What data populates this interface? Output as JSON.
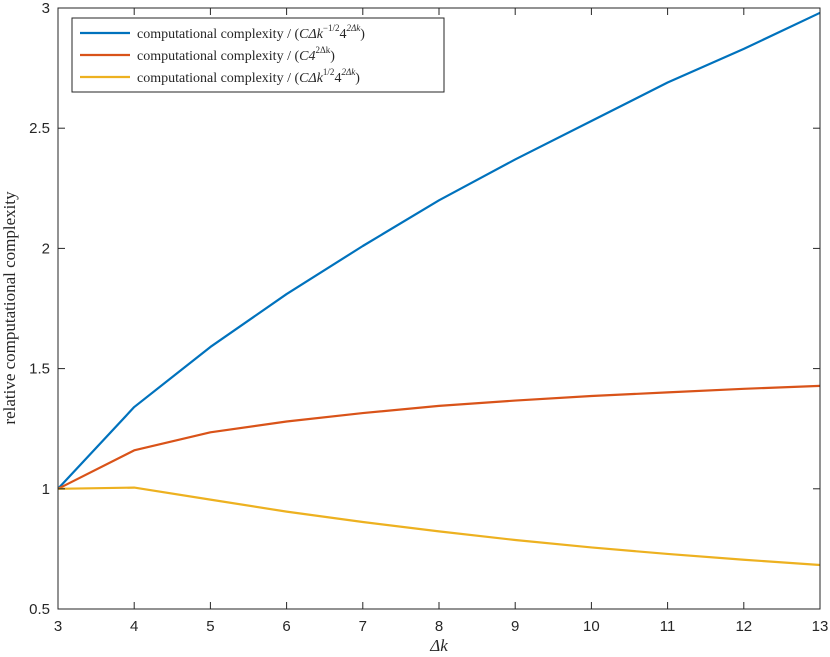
{
  "chart_data": {
    "type": "line",
    "xlabel": "Δk",
    "ylabel": "relative computational complexity",
    "xlim": [
      3,
      13
    ],
    "ylim": [
      0.5,
      3
    ],
    "x_ticks": [
      3,
      4,
      5,
      6,
      7,
      8,
      9,
      10,
      11,
      12,
      13
    ],
    "y_ticks": [
      0.5,
      1,
      1.5,
      2,
      2.5,
      3
    ],
    "y_tick_labels": [
      "0.5",
      "1",
      "1.5",
      "2",
      "2.5",
      "3"
    ],
    "grid": false,
    "legend_position": "top-left",
    "x": [
      3,
      4,
      5,
      6,
      7,
      8,
      9,
      10,
      11,
      12,
      13
    ],
    "series": [
      {
        "name": "computational complexity / (CΔk^{−1/2}4^{2Δk})",
        "legend_prefix": "computational complexity / (",
        "legend_base1": "CΔk",
        "legend_sup1": "−1/2",
        "legend_base2": "4",
        "legend_sup2": "2Δk",
        "legend_suffix": ")",
        "color": "#0072BD",
        "values": [
          1.0,
          1.34,
          1.59,
          1.81,
          2.01,
          2.2,
          2.37,
          2.53,
          2.69,
          2.83,
          2.98
        ]
      },
      {
        "name": "computational complexity / (C4^{2Δk})",
        "legend_prefix": "computational complexity / (",
        "legend_base1": "C4",
        "legend_sup1": "2Δk",
        "legend_base2": "",
        "legend_sup2": "",
        "legend_suffix": ")",
        "color": "#D95319",
        "values": [
          1.0,
          1.16,
          1.235,
          1.28,
          1.315,
          1.345,
          1.367,
          1.386,
          1.401,
          1.416,
          1.428
        ]
      },
      {
        "name": "computational complexity / (CΔk^{1/2}4^{2Δk})",
        "legend_prefix": "computational complexity / (",
        "legend_base1": "CΔk",
        "legend_sup1": "1/2",
        "legend_base2": "4",
        "legend_sup2": "2Δk",
        "legend_suffix": ")",
        "color": "#EDB120",
        "values": [
          1.0,
          1.005,
          0.955,
          0.905,
          0.862,
          0.823,
          0.787,
          0.756,
          0.729,
          0.705,
          0.683
        ]
      }
    ]
  }
}
